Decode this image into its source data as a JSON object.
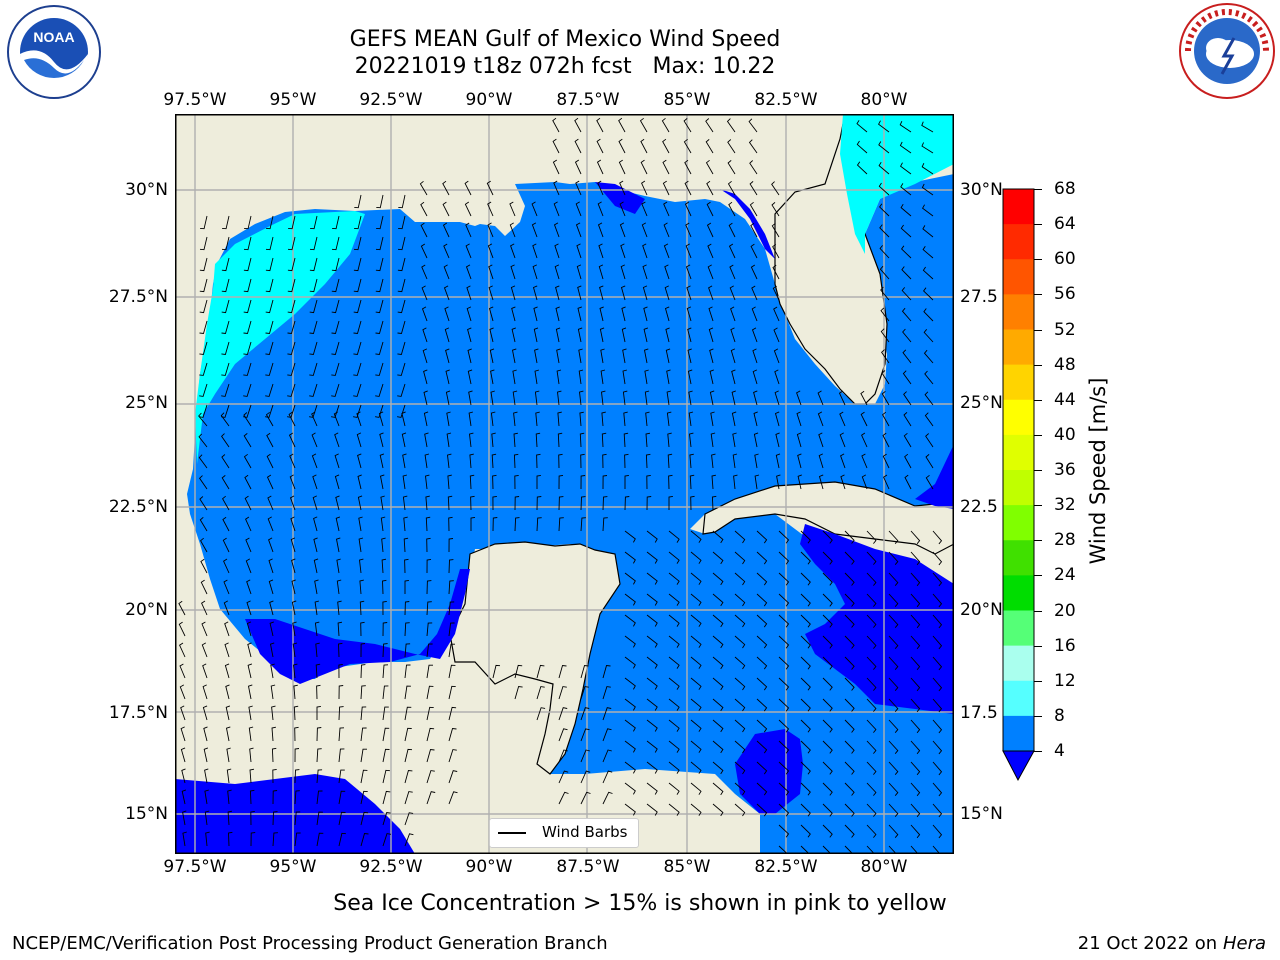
{
  "title": {
    "line1": "GEFS MEAN Gulf of Mexico Wind Speed",
    "line2": "20221019 t18z 072h fcst   Max: 10.22"
  },
  "map": {
    "lon_labels": [
      "97.5°W",
      "95°W",
      "92.5°W",
      "90°W",
      "87.5°W",
      "85°W",
      "82.5°W",
      "80°W"
    ],
    "lat_labels_left": [
      "30°N",
      "27.5°N",
      "25°N",
      "22.5°N",
      "20°N",
      "17.5°N",
      "15°N"
    ],
    "lat_labels_right": [
      "30°N",
      "27.5",
      "25°N",
      "22.5",
      "20°N",
      "17.5",
      "15°N"
    ],
    "legend_label": "Wind Barbs",
    "land_color": "#eeeddc",
    "grid_color": "#b0b0b0"
  },
  "colorbar": {
    "label": "Wind Speed [m/s]",
    "ticks": [
      "68",
      "64",
      "60",
      "56",
      "52",
      "48",
      "44",
      "40",
      "36",
      "32",
      "28",
      "24",
      "20",
      "16",
      "12",
      "8",
      "4"
    ],
    "colors": [
      "#ff0000",
      "#ff2a00",
      "#ff5500",
      "#ff8000",
      "#ffaa00",
      "#ffd400",
      "#ffff00",
      "#e0ff00",
      "#c0ff00",
      "#80ff00",
      "#40e000",
      "#00dd00",
      "#55ff77",
      "#aaffee",
      "#55ffff",
      "#00ffff",
      "#0080ff"
    ],
    "under_color": "#0000ff"
  },
  "note": "Sea Ice Concentration > 15% is shown in pink to yellow",
  "footer": {
    "left": "NCEP/EMC/Verification Post Processing Product Generation Branch",
    "right_date": "21 Oct 2022 on ",
    "right_machine": "Hera"
  }
}
